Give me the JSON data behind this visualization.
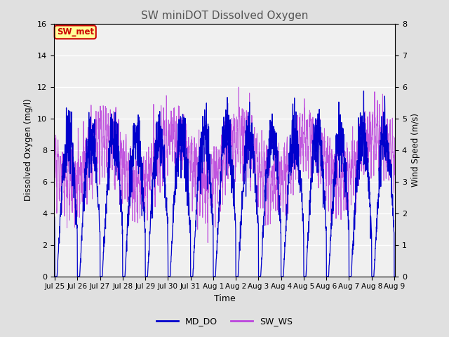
{
  "title": "SW miniDOT Dissolved Oxygen",
  "xlabel": "Time",
  "ylabel_left": "Dissolved Oxygen (mg/l)",
  "ylabel_right": "Wind Speed (m/s)",
  "ylim_left": [
    0,
    16
  ],
  "ylim_right": [
    0.0,
    8.0
  ],
  "yticks_left": [
    0,
    2,
    4,
    6,
    8,
    10,
    12,
    14,
    16
  ],
  "yticks_right": [
    0.0,
    1.0,
    2.0,
    3.0,
    4.0,
    5.0,
    6.0,
    7.0,
    8.0
  ],
  "color_MD_DO": "#0000cc",
  "color_SW_WS": "#bb44dd",
  "legend_labels": [
    "MD_DO",
    "SW_WS"
  ],
  "annotation_text": "SW_met",
  "annotation_color": "#cc0000",
  "annotation_bg": "#ffff99",
  "background_color": "#e0e0e0",
  "plot_bg": "#f0f0f0",
  "n_points": 2000,
  "start_day": 24.96,
  "end_day": 40.04,
  "xtick_labels": [
    "Jul 25",
    "Jul 26",
    "Jul 27",
    "Jul 28",
    "Jul 29",
    "Jul 30",
    "Jul 31",
    "Aug 1",
    "Aug 2",
    "Aug 3",
    "Aug 4",
    "Aug 5",
    "Aug 6",
    "Aug 7",
    "Aug 8",
    "Aug 9"
  ],
  "xtick_positions": [
    25,
    26,
    27,
    28,
    29,
    30,
    31,
    32,
    33,
    34,
    35,
    36,
    37,
    38,
    39,
    40
  ]
}
